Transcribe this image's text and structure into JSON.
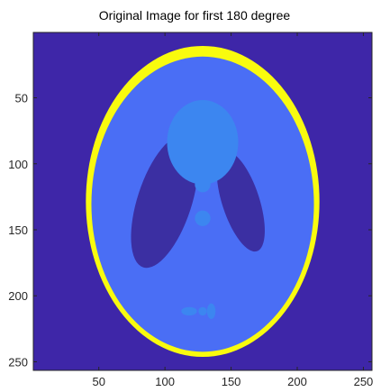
{
  "figure": {
    "title": "Original Image for first 180 degree"
  },
  "chart_data": {
    "type": "heatmap",
    "title": "Original Image for first 180 degree",
    "xlabel": "",
    "ylabel": "",
    "xlim": [
      0.5,
      256.5
    ],
    "ylim": [
      0.5,
      256.5
    ],
    "y_direction": "reversed",
    "grid": false,
    "legend": "none",
    "xticks": [
      50,
      100,
      150,
      200,
      250
    ],
    "yticks": [
      50,
      100,
      150,
      200,
      250
    ],
    "image_size": [
      256,
      256
    ],
    "colormap": "parula",
    "colors": {
      "background": "#3e26a8",
      "skull_rim": "#f9fb0e",
      "brain": "#4a6ef5",
      "ventricles": "#3b2fa2",
      "bright_regions": "#3c86f0"
    },
    "structures": [
      {
        "name": "outer skull",
        "center": [
          128.5,
          128.5
        ],
        "semi_axes": [
          88.3,
          117.8
        ],
        "angle_deg": 0
      },
      {
        "name": "brain",
        "center": [
          128.5,
          130.6
        ],
        "semi_axes": [
          84.1,
          111.8
        ],
        "angle_deg": 0
      },
      {
        "name": "right ventricle",
        "center": [
          157.3,
          128.5
        ],
        "semi_axes": [
          14.1,
          39.7
        ],
        "angle_deg": -18
      },
      {
        "name": "left ventricle",
        "center": [
          99.7,
          128.5
        ],
        "semi_axes": [
          20.5,
          52.5
        ],
        "angle_deg": 18
      },
      {
        "name": "upper blob",
        "center": [
          128.5,
          83.7
        ],
        "semi_axes": [
          26.9,
          32.0
        ],
        "angle_deg": 0
      },
      {
        "name": "small spot 1",
        "center": [
          128.5,
          115.7
        ],
        "semi_axes": [
          5.9,
          5.9
        ],
        "angle_deg": 0
      },
      {
        "name": "small spot 2",
        "center": [
          128.5,
          141.3
        ],
        "semi_axes": [
          5.9,
          5.9
        ],
        "angle_deg": 0
      },
      {
        "name": "small spot 3",
        "center": [
          118.3,
          211.7
        ],
        "semi_axes": [
          5.9,
          3.2
        ],
        "angle_deg": 0
      },
      {
        "name": "small spot 4",
        "center": [
          128.5,
          211.7
        ],
        "semi_axes": [
          3.2,
          3.2
        ],
        "angle_deg": 0
      },
      {
        "name": "small spot 5",
        "center": [
          135.0,
          211.7
        ],
        "semi_axes": [
          3.2,
          5.9
        ],
        "angle_deg": 0
      }
    ]
  }
}
